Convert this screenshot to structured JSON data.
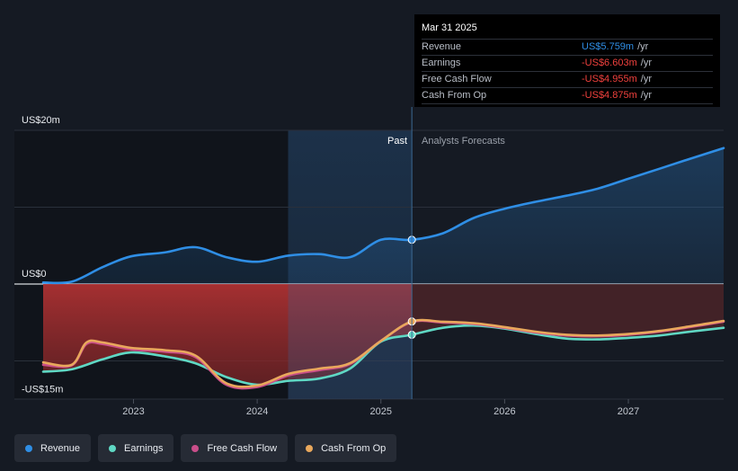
{
  "chart_data": {
    "type": "line",
    "y_unit": "US$ millions",
    "ylim": [
      -15,
      20
    ],
    "xlim": [
      2022.27,
      2027.77
    ],
    "y_axis_labels": [
      {
        "value": 20,
        "label": "US$20m"
      },
      {
        "value": 0,
        "label": "US$0"
      },
      {
        "value": -15,
        "label": "-US$15m"
      }
    ],
    "x_ticks": [
      {
        "value": 2023,
        "label": "2023"
      },
      {
        "value": 2024,
        "label": "2024"
      },
      {
        "value": 2025,
        "label": "2025"
      },
      {
        "value": 2026,
        "label": "2026"
      },
      {
        "value": 2027,
        "label": "2027"
      }
    ],
    "divider_x": 2025.25,
    "past_region_start": 2024.25,
    "past_label": "Past",
    "forecast_label": "Analysts Forecasts",
    "series": [
      {
        "name": "Revenue",
        "color": "#2f8ee5",
        "x": [
          2022.27,
          2022.5,
          2022.75,
          2022.98,
          2023.25,
          2023.5,
          2023.75,
          2024.0,
          2024.25,
          2024.5,
          2024.75,
          2025.0,
          2025.25,
          2025.5,
          2025.75,
          2026.0,
          2026.25,
          2026.5,
          2026.75,
          2027.0,
          2027.25,
          2027.5,
          2027.77
        ],
        "values": [
          0.2,
          0.3,
          2.2,
          3.6,
          4.1,
          4.8,
          3.5,
          2.9,
          3.7,
          3.9,
          3.5,
          5.75,
          5.76,
          6.6,
          8.6,
          9.8,
          10.7,
          11.5,
          12.4,
          13.7,
          15.0,
          16.3,
          17.7
        ]
      },
      {
        "name": "Earnings",
        "color": "#5fd8c4",
        "x": [
          2022.27,
          2022.5,
          2022.75,
          2022.98,
          2023.25,
          2023.5,
          2023.75,
          2024.0,
          2024.25,
          2024.5,
          2024.75,
          2025.0,
          2025.25,
          2025.5,
          2025.75,
          2026.0,
          2026.25,
          2026.5,
          2026.75,
          2027.0,
          2027.25,
          2027.5,
          2027.77
        ],
        "values": [
          -11.4,
          -11.1,
          -9.8,
          -8.9,
          -9.4,
          -10.3,
          -12.1,
          -13.1,
          -12.6,
          -12.3,
          -11.0,
          -7.5,
          -6.6,
          -5.7,
          -5.4,
          -5.8,
          -6.5,
          -7.1,
          -7.2,
          -7.0,
          -6.7,
          -6.2,
          -5.7
        ]
      },
      {
        "name": "Free Cash Flow",
        "color": "#c94e8a",
        "x": [
          2022.27,
          2022.5,
          2022.62,
          2022.75,
          2022.98,
          2023.25,
          2023.5,
          2023.75,
          2024.0,
          2024.25,
          2024.5,
          2024.75,
          2025.0,
          2025.25,
          2025.5,
          2025.75,
          2026.0,
          2026.25,
          2026.5,
          2026.75,
          2027.0,
          2027.25,
          2027.5,
          2027.77
        ],
        "values": [
          -10.5,
          -10.6,
          -7.8,
          -7.8,
          -8.5,
          -8.8,
          -9.5,
          -13.1,
          -13.4,
          -11.9,
          -11.2,
          -10.4,
          -7.4,
          -4.95,
          -5.0,
          -5.2,
          -5.7,
          -6.3,
          -6.7,
          -6.8,
          -6.6,
          -6.2,
          -5.6,
          -4.9
        ]
      },
      {
        "name": "Cash From Op",
        "color": "#e9a85c",
        "x": [
          2022.27,
          2022.5,
          2022.62,
          2022.75,
          2022.98,
          2023.25,
          2023.5,
          2023.75,
          2024.0,
          2024.25,
          2024.5,
          2024.75,
          2025.0,
          2025.25,
          2025.5,
          2025.75,
          2026.0,
          2026.25,
          2026.5,
          2026.75,
          2027.0,
          2027.25,
          2027.5,
          2027.77
        ],
        "values": [
          -10.2,
          -10.5,
          -7.6,
          -7.6,
          -8.3,
          -8.6,
          -9.3,
          -12.9,
          -13.2,
          -11.7,
          -11.0,
          -10.3,
          -7.4,
          -4.87,
          -4.9,
          -5.1,
          -5.6,
          -6.2,
          -6.6,
          -6.7,
          -6.5,
          -6.1,
          -5.5,
          -4.8
        ]
      }
    ]
  },
  "tooltip": {
    "date": "Mar 31 2025",
    "unit": "/yr",
    "rows": [
      {
        "label": "Revenue",
        "value": "US$5.759m",
        "color": "#2f8ee5"
      },
      {
        "label": "Earnings",
        "value": "-US$6.603m",
        "color": "#f0413d"
      },
      {
        "label": "Free Cash Flow",
        "value": "-US$4.955m",
        "color": "#f0413d"
      },
      {
        "label": "Cash From Op",
        "value": "-US$4.875m",
        "color": "#f0413d"
      }
    ]
  },
  "legend": [
    {
      "label": "Revenue",
      "color": "#2f8ee5"
    },
    {
      "label": "Earnings",
      "color": "#5fd8c4"
    },
    {
      "label": "Free Cash Flow",
      "color": "#c94e8a"
    },
    {
      "label": "Cash From Op",
      "color": "#e9a85c"
    }
  ]
}
